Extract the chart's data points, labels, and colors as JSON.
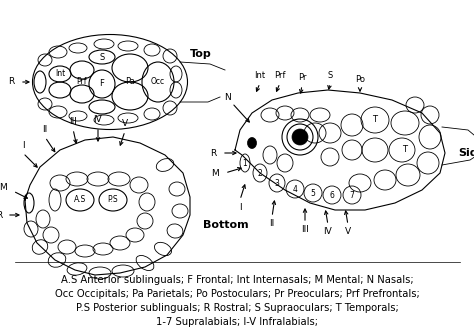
{
  "caption_lines": [
    "A.S Anterior sublinguals; F Frontal; Int Internasals; M Mental; N Nasals;",
    "Occ Occipitals; Pa Parietals; Po Postoculars; Pr Preoculars; Prf Prefrontals;",
    "P.S Posterior sublinguals; R Rostral; S Supraoculars; T Temporals;",
    "1-7 Supralabials; I-V Infralabials;"
  ],
  "caption_fontsize": 7.2,
  "bg_color": "#ffffff",
  "fig_width": 4.74,
  "fig_height": 3.35,
  "dpi": 100
}
